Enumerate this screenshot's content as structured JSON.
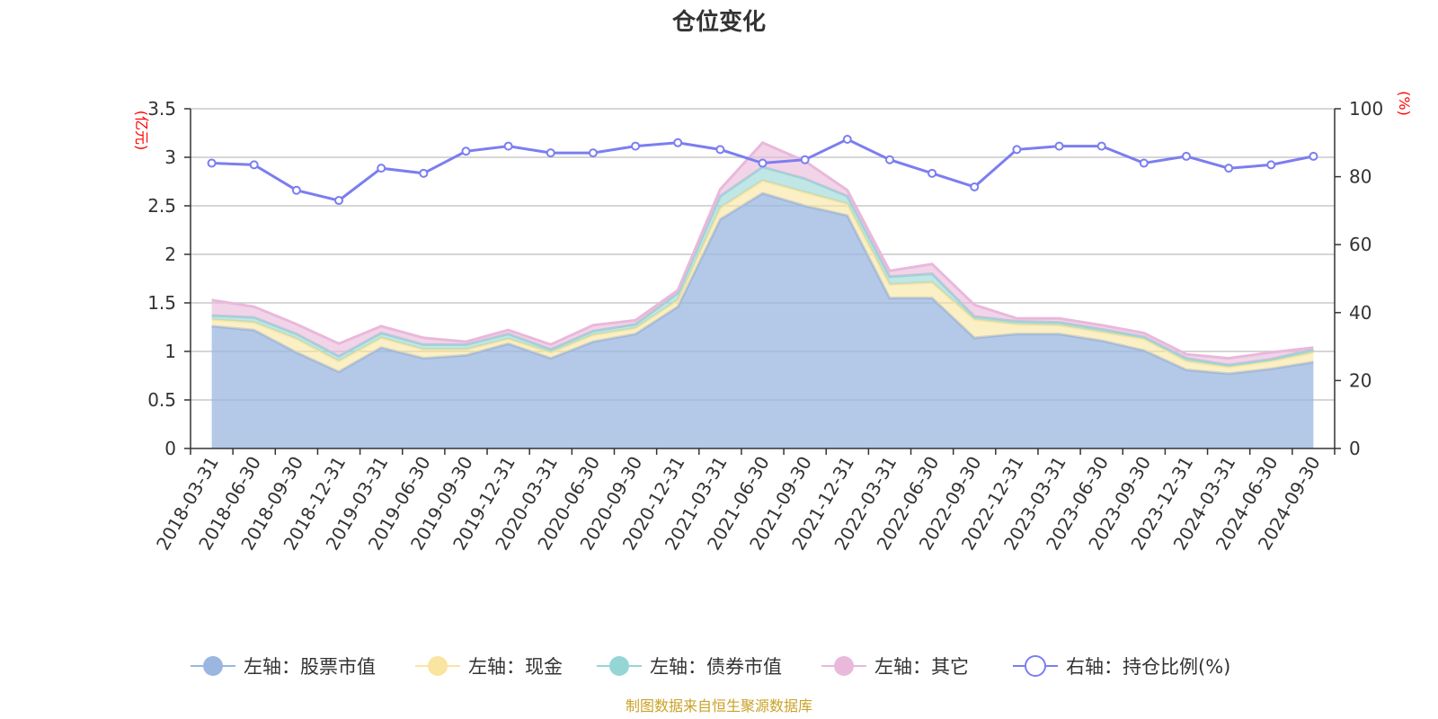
{
  "chart_data": {
    "type": "area",
    "title": "仓位变化",
    "source": "制图数据来自恒生聚源数据库",
    "categories": [
      "2018-03-31",
      "2018-06-30",
      "2018-09-30",
      "2018-12-31",
      "2019-03-31",
      "2019-06-30",
      "2019-09-30",
      "2019-12-31",
      "2020-03-31",
      "2020-06-30",
      "2020-09-30",
      "2020-12-31",
      "2021-03-31",
      "2021-06-30",
      "2021-09-30",
      "2021-12-31",
      "2022-03-31",
      "2022-06-30",
      "2022-09-30",
      "2022-12-31",
      "2023-03-31",
      "2023-06-30",
      "2023-09-30",
      "2023-12-31",
      "2024-03-31",
      "2024-06-30",
      "2024-09-30"
    ],
    "left_axis": {
      "unit": "(亿元)",
      "ylim": [
        0,
        3.5
      ],
      "ticks": [
        "0",
        "0.5",
        "1",
        "1.5",
        "2",
        "2.5",
        "3",
        "3.5"
      ]
    },
    "right_axis": {
      "unit": "(%)",
      "ylim": [
        0,
        100
      ],
      "ticks": [
        "0",
        "20",
        "40",
        "60",
        "80",
        "100"
      ]
    },
    "series": [
      {
        "name": "左轴：股票市值",
        "axis": "left",
        "kind": "area",
        "color": "#9bb6e0",
        "values": [
          1.26,
          1.22,
          0.99,
          0.79,
          1.04,
          0.93,
          0.96,
          1.08,
          0.93,
          1.1,
          1.18,
          1.46,
          2.36,
          2.63,
          2.5,
          2.4,
          1.55,
          1.55,
          1.14,
          1.18,
          1.18,
          1.11,
          1.01,
          0.81,
          0.77,
          0.82,
          0.89
        ]
      },
      {
        "name": "左轴：现金",
        "axis": "left",
        "kind": "area",
        "color": "#f9e4a0",
        "values": [
          0.07,
          0.08,
          0.14,
          0.11,
          0.1,
          0.09,
          0.06,
          0.05,
          0.06,
          0.07,
          0.06,
          0.07,
          0.12,
          0.13,
          0.14,
          0.12,
          0.14,
          0.16,
          0.19,
          0.1,
          0.09,
          0.09,
          0.12,
          0.09,
          0.07,
          0.08,
          0.1
        ]
      },
      {
        "name": "左轴：债券市值",
        "axis": "left",
        "kind": "area",
        "color": "#96d5d6",
        "values": [
          0.04,
          0.05,
          0.05,
          0.05,
          0.05,
          0.05,
          0.05,
          0.05,
          0.03,
          0.04,
          0.04,
          0.07,
          0.12,
          0.14,
          0.14,
          0.08,
          0.08,
          0.09,
          0.03,
          0.03,
          0.03,
          0.03,
          0.02,
          0.03,
          0.02,
          0.02,
          0.03
        ]
      },
      {
        "name": "左轴：其它",
        "axis": "left",
        "kind": "area",
        "color": "#e9b8db",
        "values": [
          0.16,
          0.11,
          0.1,
          0.13,
          0.07,
          0.07,
          0.03,
          0.04,
          0.05,
          0.06,
          0.04,
          0.03,
          0.07,
          0.25,
          0.18,
          0.06,
          0.06,
          0.1,
          0.12,
          0.03,
          0.04,
          0.04,
          0.04,
          0.04,
          0.07,
          0.07,
          0.02
        ]
      },
      {
        "name": "右轴：持仓比例(%)",
        "axis": "right",
        "kind": "line",
        "color": "#7b7ef0",
        "values": [
          84,
          83.5,
          76,
          73,
          82.5,
          81,
          87.5,
          89,
          87,
          87,
          89,
          90,
          88,
          84,
          85,
          91,
          85,
          81,
          77,
          88,
          89,
          89,
          84,
          86,
          82.5,
          83.5,
          86
        ]
      }
    ]
  }
}
